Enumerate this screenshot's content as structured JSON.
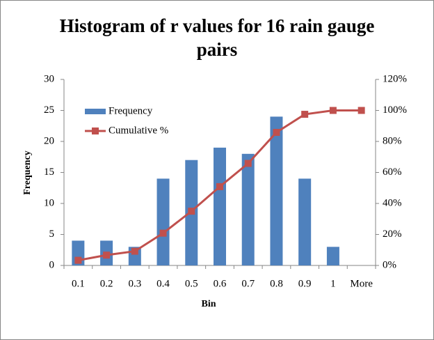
{
  "chart_data": {
    "type": "bar_line",
    "title": "Histogram of r values for 16 rain gauge pairs",
    "x_label": "Bin",
    "y_label": "Frequency",
    "categories": [
      "0.1",
      "0.2",
      "0.3",
      "0.4",
      "0.5",
      "0.6",
      "0.7",
      "0.8",
      "0.9",
      "1",
      "More"
    ],
    "series": [
      {
        "name": "Frequency",
        "type": "bar",
        "color": "#4f81bd",
        "values": [
          4,
          4,
          3,
          14,
          17,
          19,
          18,
          24,
          14,
          3,
          0
        ]
      },
      {
        "name": "Cumulative %",
        "type": "line",
        "axis": "y2",
        "color": "#c0504d",
        "values": [
          3.33,
          6.67,
          9.17,
          20.83,
          35.0,
          50.83,
          65.83,
          85.83,
          97.5,
          100,
          100
        ]
      }
    ],
    "ylim": [
      0,
      30
    ],
    "yticks": [
      0,
      5,
      10,
      15,
      20,
      25,
      30
    ],
    "y2lim": [
      0,
      120
    ],
    "y2ticks": [
      {
        "value": 0,
        "label": "0%"
      },
      {
        "value": 20,
        "label": "20%"
      },
      {
        "value": 40,
        "label": "40%"
      },
      {
        "value": 60,
        "label": "60%"
      },
      {
        "value": 80,
        "label": "80%"
      },
      {
        "value": 100,
        "label": "100%"
      },
      {
        "value": 120,
        "label": "120%"
      }
    ],
    "grid": false,
    "legend": "upper-left"
  }
}
